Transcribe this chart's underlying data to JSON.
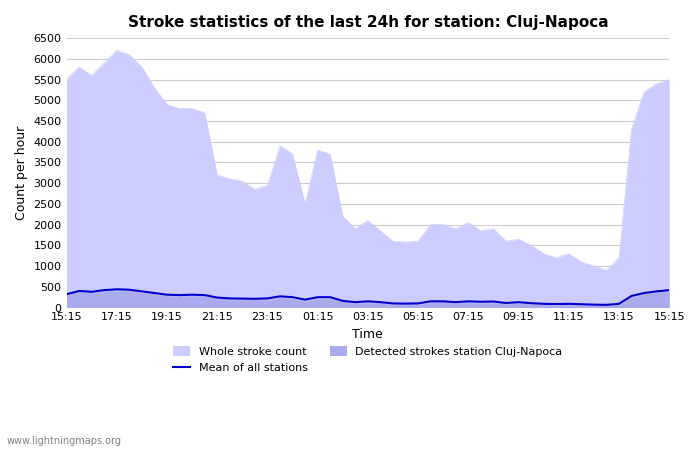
{
  "title": "Stroke statistics of the last 24h for station: Cluj-Napoca",
  "xlabel": "Time",
  "ylabel": "Count per hour",
  "xlim": [
    0,
    24
  ],
  "ylim": [
    0,
    6500
  ],
  "yticks": [
    0,
    500,
    1000,
    1500,
    2000,
    2500,
    3000,
    3500,
    4000,
    4500,
    5000,
    5500,
    6000,
    6500
  ],
  "xtick_labels": [
    "15:15",
    "17:15",
    "19:15",
    "21:15",
    "23:15",
    "01:15",
    "03:15",
    "05:15",
    "07:15",
    "09:15",
    "11:15",
    "13:15",
    "15:15"
  ],
  "bg_color": "#ffffff",
  "grid_color": "#cccccc",
  "whole_stroke_color": "#ccccff",
  "detected_stroke_color": "#aaaaee",
  "mean_line_color": "#0000cc",
  "watermark": "www.lightningmaps.org",
  "whole_stroke_x": [
    0,
    0.5,
    1,
    1.5,
    2,
    2.5,
    3,
    3.5,
    4,
    4.5,
    5,
    5.5,
    6,
    6.5,
    7,
    7.5,
    8,
    8.5,
    9,
    9.5,
    10,
    10.5,
    11,
    11.5,
    12,
    12.5,
    13,
    13.5,
    14,
    14.5,
    15,
    15.5,
    16,
    16.5,
    17,
    17.5,
    18,
    18.5,
    19,
    19.5,
    20,
    20.5,
    21,
    21.5,
    22,
    22.5,
    23,
    23.5,
    24
  ],
  "whole_stroke_y": [
    5500,
    5800,
    5600,
    5900,
    6200,
    6100,
    5800,
    5300,
    4900,
    4800,
    4800,
    4700,
    3200,
    3100,
    3050,
    2850,
    2950,
    3900,
    3700,
    2500,
    3800,
    3700,
    2200,
    1900,
    2100,
    1850,
    1600,
    1580,
    1600,
    2000,
    2000,
    1900,
    2050,
    1850,
    1900,
    1600,
    1650,
    1500,
    1300,
    1200,
    1300,
    1100,
    1000,
    900,
    1200,
    4300,
    5200,
    5400,
    5500
  ],
  "detected_stroke_x": [
    0,
    0.5,
    1,
    1.5,
    2,
    2.5,
    3,
    3.5,
    4,
    4.5,
    5,
    5.5,
    6,
    6.5,
    7,
    7.5,
    8,
    8.5,
    9,
    9.5,
    10,
    10.5,
    11,
    11.5,
    12,
    12.5,
    13,
    13.5,
    14,
    14.5,
    15,
    15.5,
    16,
    16.5,
    17,
    17.5,
    18,
    18.5,
    19,
    19.5,
    20,
    20.5,
    21,
    21.5,
    22,
    22.5,
    23,
    23.5,
    24
  ],
  "detected_stroke_y": [
    300,
    380,
    350,
    380,
    400,
    390,
    350,
    310,
    280,
    280,
    280,
    260,
    200,
    180,
    175,
    170,
    175,
    220,
    200,
    150,
    200,
    200,
    130,
    100,
    120,
    100,
    80,
    75,
    80,
    120,
    120,
    110,
    120,
    110,
    110,
    90,
    100,
    85,
    70,
    65,
    70,
    60,
    55,
    50,
    70,
    250,
    320,
    360,
    390
  ],
  "mean_line_x": [
    0,
    0.5,
    1,
    1.5,
    2,
    2.5,
    3,
    3.5,
    4,
    4.5,
    5,
    5.5,
    6,
    6.5,
    7,
    7.5,
    8,
    8.5,
    9,
    9.5,
    10,
    10.5,
    11,
    11.5,
    12,
    12.5,
    13,
    13.5,
    14,
    14.5,
    15,
    15.5,
    16,
    16.5,
    17,
    17.5,
    18,
    18.5,
    19,
    19.5,
    20,
    20.5,
    21,
    21.5,
    22,
    22.5,
    23,
    23.5,
    24
  ],
  "mean_line_y": [
    320,
    400,
    380,
    420,
    440,
    430,
    390,
    350,
    310,
    300,
    310,
    300,
    240,
    220,
    215,
    210,
    220,
    270,
    250,
    190,
    250,
    250,
    160,
    130,
    150,
    130,
    100,
    95,
    100,
    150,
    150,
    130,
    150,
    140,
    145,
    110,
    130,
    105,
    90,
    85,
    90,
    80,
    70,
    65,
    90,
    280,
    350,
    390,
    420
  ]
}
